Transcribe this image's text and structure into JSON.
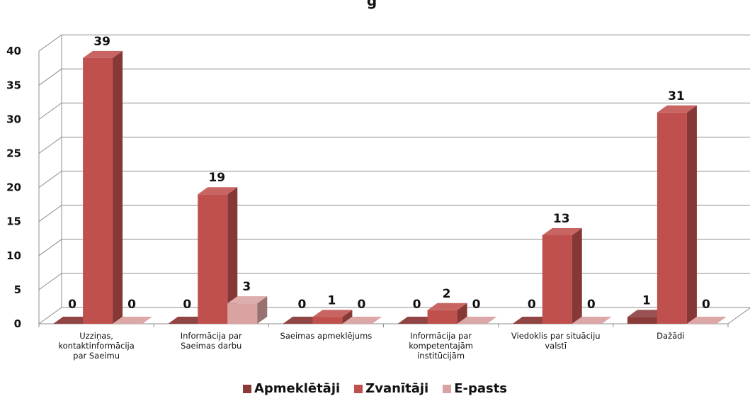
{
  "chart_data": {
    "type": "bar",
    "title": "g",
    "categories": [
      [
        "Uzziņas,",
        "kontaktinformācija",
        "par Saeimu"
      ],
      [
        "Informācija par",
        "Saeimas darbu"
      ],
      [
        "Saeimas apmeklējums"
      ],
      [
        "Informācija par",
        "kompetentajām",
        "institūcijām"
      ],
      [
        "Viedoklis par situāciju",
        "valstī"
      ],
      [
        "Dažādi"
      ]
    ],
    "series": [
      {
        "name": "Apmeklētāji",
        "color": "#8B3A3A",
        "values": [
          0,
          0,
          0,
          0,
          0,
          1
        ]
      },
      {
        "name": "Zvanītāji",
        "color": "#C0504D",
        "values": [
          39,
          19,
          1,
          2,
          13,
          31
        ]
      },
      {
        "name": "E-pasts",
        "color": "#D9A3A2",
        "values": [
          0,
          3,
          0,
          0,
          0,
          0
        ]
      }
    ],
    "ylim": [
      0,
      40
    ],
    "yticks": [
      0,
      5,
      10,
      15,
      20,
      25,
      30,
      35,
      40
    ],
    "grid": true,
    "legend_position": "bottom"
  }
}
